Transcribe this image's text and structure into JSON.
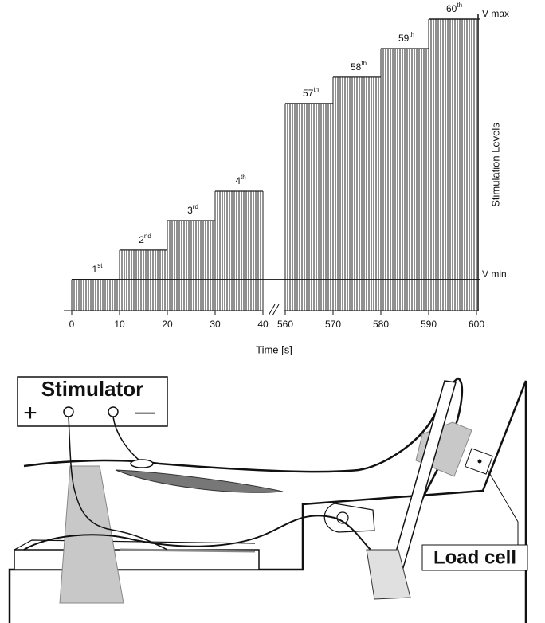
{
  "chart_data": {
    "type": "step-pulses",
    "xlabel": "Time [s]",
    "ylabel": "Stimulation Levels",
    "xlim": [
      0,
      600
    ],
    "x_break": [
      40,
      560
    ],
    "xticks": [
      0,
      10,
      20,
      30,
      40,
      560,
      570,
      580,
      590,
      600
    ],
    "ylim": [
      -0.12,
      1
    ],
    "yticks": [
      {
        "value": 0,
        "label": "V min"
      },
      {
        "value": 1,
        "label": "V max"
      }
    ],
    "color": "#222222",
    "steps": [
      {
        "label": "1",
        "suffix": "st",
        "start": 0,
        "end": 10,
        "level": 0
      },
      {
        "label": "2",
        "suffix": "nd",
        "start": 10,
        "end": 20,
        "level": 0.113
      },
      {
        "label": "3",
        "suffix": "rd",
        "start": 20,
        "end": 30,
        "level": 0.226
      },
      {
        "label": "4",
        "suffix": "th",
        "start": 30,
        "end": 40,
        "level": 0.339
      },
      {
        "label": "57",
        "suffix": "th",
        "start": 560,
        "end": 570,
        "level": 0.676
      },
      {
        "label": "58",
        "suffix": "th",
        "start": 570,
        "end": 580,
        "level": 0.777
      },
      {
        "label": "59",
        "suffix": "th",
        "start": 580,
        "end": 590,
        "level": 0.887
      },
      {
        "label": "60",
        "suffix": "th",
        "start": 590,
        "end": 600,
        "level": 1
      }
    ]
  },
  "diagram": {
    "stimulator": {
      "title": "Stimulator",
      "plus": "+",
      "minus": "—"
    },
    "load_cell": "Load cell"
  }
}
